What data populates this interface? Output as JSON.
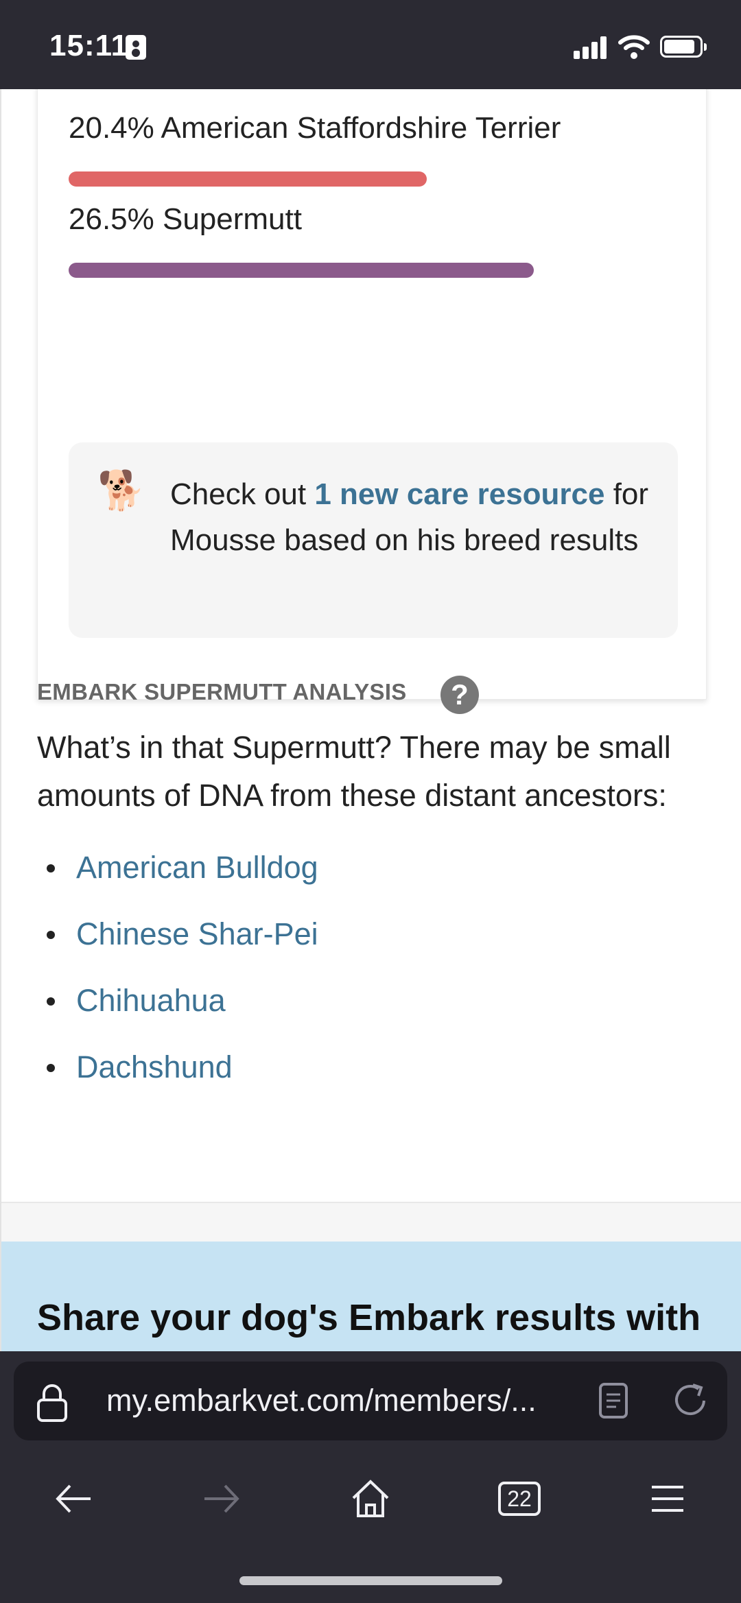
{
  "status_bar": {
    "time": "15:11"
  },
  "breed_results": [
    {
      "label": "",
      "color": "#7ec3e6",
      "bar_fraction": 0.203
    },
    {
      "label": "20.4% American Staffordshire Terrier",
      "color": "#e06666",
      "bar_fraction": 0.204
    },
    {
      "label": "26.5% Supermutt",
      "color": "#8b5a8b",
      "bar_fraction": 0.265
    }
  ],
  "care_resource": {
    "icon": "dog-emoji",
    "prefix": "Check out ",
    "link": "1 new care resource",
    "suffix": " for Mousse based on his breed results"
  },
  "supermutt": {
    "heading": "EMBARK SUPERMUTT ANALYSIS",
    "intro": "What’s in that Supermutt? There may be small amounts of DNA from these distant ancestors:",
    "ancestors": [
      "American Bulldog",
      "Chinese Shar-Pei",
      "Chihuahua",
      "Dachshund"
    ]
  },
  "share": {
    "title": "Share your dog's Embark results with"
  },
  "browser": {
    "url": "my.embarkvet.com/members/...",
    "tab_count": "22"
  },
  "colors": {
    "link": "#3c7294",
    "share_band": "#c6e3f3",
    "chrome": "#2b2a33"
  }
}
